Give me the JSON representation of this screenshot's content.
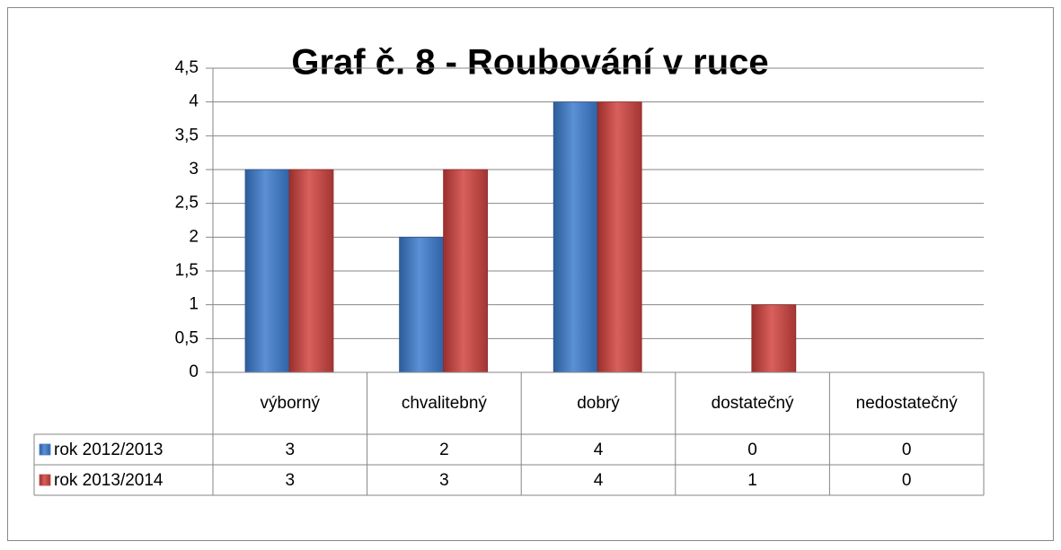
{
  "chart_data": {
    "type": "bar",
    "title": "Graf č. 8 - Roubování v ruce",
    "categories": [
      "výborný",
      "chvalitebný",
      "dobrý",
      "dostatečný",
      "nedostatečný"
    ],
    "series": [
      {
        "name": "rok 2012/2013",
        "color": "#4a7ebb",
        "values": [
          3,
          2,
          4,
          0,
          0
        ]
      },
      {
        "name": "rok 2013/2014",
        "color": "#be4b48",
        "values": [
          3,
          3,
          4,
          1,
          0
        ]
      }
    ],
    "ylim": [
      0,
      4.5
    ],
    "yticks": [
      0,
      {
        "value": 0.5,
        "label": "0,5"
      },
      1,
      {
        "value": 1.5,
        "label": "1,5"
      },
      2,
      {
        "value": 2.5,
        "label": "2,5"
      },
      3,
      {
        "value": 3.5,
        "label": "3,5"
      },
      4,
      {
        "value": 4.5,
        "label": "4,5"
      }
    ],
    "grid": true,
    "data_table": true
  }
}
